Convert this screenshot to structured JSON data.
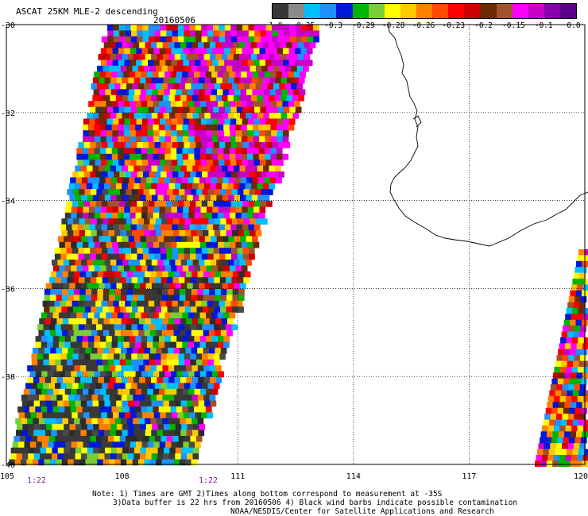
{
  "title": "ASCAT 25KM MLE-2 descending",
  "date": "20160506",
  "colorbar": {
    "colors": [
      "#383838",
      "#8a8a8a",
      "#00bfff",
      "#1e90ff",
      "#0018d8",
      "#00b400",
      "#7acd32",
      "#ffff00",
      "#ffc800",
      "#ff8000",
      "#ff4a00",
      "#ff0000",
      "#cc0000",
      "#6b2a00",
      "#a0522d",
      "#ff00ff",
      "#c800c8",
      "#8800aa",
      "#5a0088"
    ],
    "labels": [
      "-1.0",
      "-0.35",
      "-0.3",
      "-0.29",
      "-0.28",
      "-0.26",
      "-0.23",
      "-0.2",
      "-0.15",
      "-0.1",
      "0.0"
    ]
  },
  "axes": {
    "lat_labels": [
      "-30",
      "-32",
      "-34",
      "-36",
      "-38",
      "-40"
    ],
    "lon_labels": [
      "105",
      "108",
      "111",
      "114",
      "117",
      "120"
    ],
    "lat_range": [
      -40,
      -30
    ],
    "lon_range": [
      105,
      120
    ]
  },
  "times": [
    "1:22",
    "1:22"
  ],
  "notes": [
    "Note: 1) Times are GMT 2)Times along bottom correspond to measurement at -35S",
    "3)Data buffer is 22 hrs from 20160506 4) Black wind barbs indicate possible contamination",
    "NOAA/NESDIS/Center for Satellite Applications and Research"
  ]
}
